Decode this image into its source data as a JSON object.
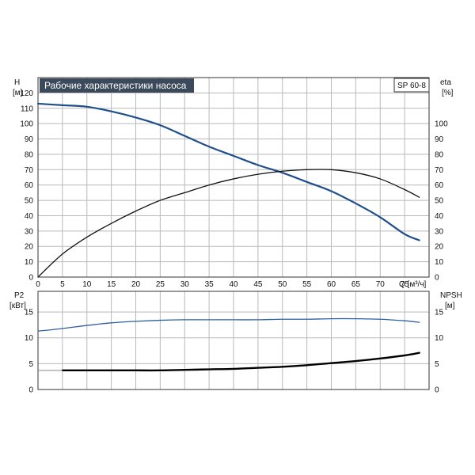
{
  "chart_data": [
    {
      "type": "line",
      "title": "Рабочие характеристики насоса",
      "model_label": "SP 60-8",
      "xlabel": "Q [м³/ч]",
      "ylabel_left_name": "H",
      "ylabel_left_unit": "[м]",
      "ylabel_right_name": "eta",
      "ylabel_right_unit": "[%]",
      "xlim": [
        0,
        80
      ],
      "ylim_left": [
        0,
        130
      ],
      "ylim_right": [
        0,
        130
      ],
      "x_ticks": [
        0,
        5,
        10,
        15,
        20,
        25,
        30,
        35,
        40,
        45,
        50,
        55,
        60,
        65,
        70,
        75
      ],
      "y_ticks_left": [
        0,
        10,
        20,
        30,
        40,
        50,
        60,
        70,
        80,
        90,
        100,
        110,
        120
      ],
      "y_ticks_right": [
        0,
        10,
        20,
        30,
        40,
        50,
        60,
        70,
        80,
        90,
        100
      ],
      "grid": true,
      "series": [
        {
          "axis": "left",
          "color": "#1f4e8c",
          "x": [
            0,
            5,
            10,
            15,
            20,
            25,
            30,
            35,
            40,
            45,
            50,
            55,
            60,
            65,
            70,
            75,
            78
          ],
          "values": [
            113,
            112,
            111,
            108,
            104,
            99,
            92,
            85,
            79,
            73,
            68,
            62,
            56,
            48,
            39,
            28,
            24
          ]
        },
        {
          "axis": "right",
          "color": "#111111",
          "x": [
            0,
            5,
            10,
            15,
            20,
            25,
            30,
            35,
            40,
            45,
            50,
            55,
            60,
            65,
            70,
            75,
            78
          ],
          "values": [
            0,
            15,
            26,
            35,
            43,
            50,
            55,
            60,
            64,
            67,
            69,
            70,
            70,
            68,
            64,
            57,
            52
          ]
        }
      ]
    },
    {
      "type": "line",
      "ylabel_left_name": "P2",
      "ylabel_left_unit": "[кВт]",
      "ylabel_right_name": "NPSH",
      "ylabel_right_unit": "[м]",
      "xlim": [
        0,
        80
      ],
      "ylim_left": [
        0,
        19
      ],
      "ylim_right": [
        0,
        19
      ],
      "y_ticks_left": [
        0,
        5,
        10,
        15
      ],
      "y_ticks_right": [
        0,
        5,
        10,
        15
      ],
      "grid": true,
      "series": [
        {
          "axis": "left",
          "color": "#2e5fa0",
          "x": [
            0,
            5,
            10,
            15,
            20,
            25,
            30,
            35,
            40,
            45,
            50,
            55,
            60,
            65,
            70,
            75,
            78
          ],
          "values": [
            11.3,
            11.8,
            12.4,
            12.9,
            13.2,
            13.4,
            13.5,
            13.5,
            13.5,
            13.5,
            13.6,
            13.6,
            13.7,
            13.7,
            13.6,
            13.3,
            13.0
          ]
        },
        {
          "axis": "right",
          "color": "#000000",
          "x": [
            5,
            10,
            15,
            20,
            25,
            30,
            35,
            40,
            45,
            50,
            55,
            60,
            65,
            70,
            75,
            78
          ],
          "values": [
            3.7,
            3.7,
            3.7,
            3.7,
            3.7,
            3.8,
            3.9,
            4.0,
            4.2,
            4.4,
            4.7,
            5.1,
            5.5,
            6.0,
            6.6,
            7.1
          ]
        }
      ]
    }
  ]
}
